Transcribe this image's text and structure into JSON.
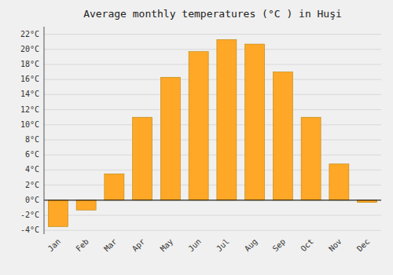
{
  "chart_data": {
    "type": "bar",
    "title": "Average monthly temperatures (°C ) in Huşi",
    "categories": [
      "Jan",
      "Feb",
      "Mar",
      "Apr",
      "May",
      "Jun",
      "Jul",
      "Aug",
      "Sep",
      "Oct",
      "Nov",
      "Dec"
    ],
    "values": [
      -3.5,
      -1.3,
      3.5,
      11.0,
      16.3,
      19.7,
      21.3,
      20.7,
      17.0,
      11.0,
      4.8,
      -0.3
    ],
    "color": "#FFA726",
    "ylim": [
      -4.5,
      23
    ],
    "yticks": [
      {
        "value": -4,
        "label": "-4°C"
      },
      {
        "value": -2,
        "label": "-2°C"
      },
      {
        "value": 0,
        "label": "0°C"
      },
      {
        "value": 2,
        "label": "2°C"
      },
      {
        "value": 4,
        "label": "4°C"
      },
      {
        "value": 6,
        "label": "6°C"
      },
      {
        "value": 8,
        "label": "8°C"
      },
      {
        "value": 10,
        "label": "10°C"
      },
      {
        "value": 12,
        "label": "12°C"
      },
      {
        "value": 14,
        "label": "14°C"
      },
      {
        "value": 16,
        "label": "16°C"
      },
      {
        "value": 18,
        "label": "18°C"
      },
      {
        "value": 20,
        "label": "20°C"
      },
      {
        "value": 22,
        "label": "22°C"
      }
    ],
    "grid": true
  }
}
